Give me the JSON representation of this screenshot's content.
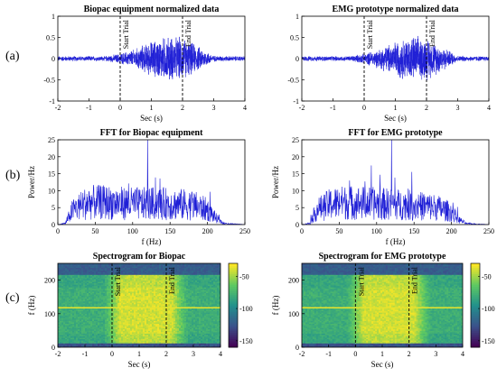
{
  "row_labels": [
    "(a)",
    "(b)",
    "(c)"
  ],
  "colors": {
    "signal": "#1f1fd6",
    "axis": "#000000"
  },
  "chart_data": [
    {
      "id": "biopac-time",
      "type": "line",
      "title": "Biopac equipment normalized data",
      "xlabel": "Sec (s)",
      "ylabel": "",
      "xlim": [
        -2,
        4
      ],
      "ylim": [
        -1,
        1
      ],
      "xticks": [
        -2,
        -1,
        0,
        1,
        2,
        3,
        4
      ],
      "yticks": [
        -1,
        -0.5,
        0,
        0.5,
        1
      ],
      "xtick_labels": [
        "-2",
        "-1",
        "0",
        "1",
        "2",
        "3",
        "4"
      ],
      "ytick_labels": [
        "-1",
        "-0.5",
        "0",
        "0.5",
        "1"
      ],
      "annotations": [
        {
          "x": 0,
          "label": "Start Trial"
        },
        {
          "x": 2,
          "label": "End Trial"
        }
      ],
      "envelope": {
        "x": [
          -2,
          -0.5,
          0,
          0.5,
          1.0,
          1.5,
          2.0,
          2.5,
          3.0,
          3.5,
          4
        ],
        "amp": [
          0.05,
          0.05,
          0.1,
          0.2,
          0.35,
          0.45,
          0.42,
          0.25,
          0.06,
          0.05,
          0.05
        ]
      }
    },
    {
      "id": "emg-time",
      "type": "line",
      "title": "EMG prototype normalized data",
      "xlabel": "Sec (s)",
      "ylabel": "",
      "xlim": [
        -2,
        4
      ],
      "ylim": [
        -1,
        1
      ],
      "xticks": [
        -2,
        -1,
        0,
        1,
        2,
        3,
        4
      ],
      "yticks": [
        -1,
        -0.5,
        0,
        0.5,
        1
      ],
      "xtick_labels": [
        "-2",
        "-1",
        "0",
        "1",
        "2",
        "3",
        "4"
      ],
      "ytick_labels": [
        "-1",
        "-0.5",
        "0",
        "0.5",
        "1"
      ],
      "annotations": [
        {
          "x": 0,
          "label": "Start Trial"
        },
        {
          "x": 2,
          "label": "End Trial"
        }
      ],
      "envelope": {
        "x": [
          -2,
          -0.5,
          0,
          0.5,
          1.0,
          1.5,
          2.0,
          2.5,
          3.0,
          3.5,
          4
        ],
        "amp": [
          0.05,
          0.05,
          0.1,
          0.2,
          0.35,
          0.45,
          0.42,
          0.25,
          0.06,
          0.05,
          0.05
        ]
      }
    },
    {
      "id": "biopac-fft",
      "type": "line",
      "title": "FFT for Biopac equipment",
      "xlabel": "f (Hz)",
      "ylabel": "Power/Hz",
      "xlim": [
        0,
        250
      ],
      "ylim": [
        0,
        25
      ],
      "xticks": [
        0,
        50,
        100,
        150,
        200,
        250
      ],
      "yticks": [
        0,
        5,
        10,
        15,
        20,
        25
      ],
      "xtick_labels": [
        "0",
        "50",
        "100",
        "150",
        "200",
        "250"
      ],
      "ytick_labels": [
        "0",
        "5",
        "10",
        "15",
        "20",
        "25"
      ],
      "spike": {
        "x": 120,
        "y": 25
      },
      "envelope": {
        "x": [
          0,
          10,
          20,
          40,
          60,
          100,
          140,
          180,
          200,
          210,
          220,
          250
        ],
        "amp": [
          0,
          0.5,
          6,
          9,
          9,
          8.5,
          8.5,
          8,
          6,
          3,
          0.5,
          0
        ]
      }
    },
    {
      "id": "emg-fft",
      "type": "line",
      "title": "FFT for EMG prototype",
      "xlabel": "f (Hz)",
      "ylabel": "Power/Hz",
      "xlim": [
        0,
        250
      ],
      "ylim": [
        0,
        25
      ],
      "xticks": [
        0,
        50,
        100,
        150,
        200,
        250
      ],
      "yticks": [
        0,
        5,
        10,
        15,
        20,
        25
      ],
      "xtick_labels": [
        "0",
        "50",
        "100",
        "150",
        "200",
        "250"
      ],
      "ytick_labels": [
        "0",
        "5",
        "10",
        "15",
        "20",
        "25"
      ],
      "spike": {
        "x": 120,
        "y": 25
      },
      "envelope": {
        "x": [
          0,
          10,
          20,
          40,
          60,
          100,
          140,
          180,
          200,
          210,
          220,
          250
        ],
        "amp": [
          0,
          0.5,
          6,
          8.5,
          9,
          8.5,
          8,
          7,
          5,
          2,
          0.4,
          0
        ]
      }
    },
    {
      "id": "biopac-spec",
      "type": "heatmap",
      "title": "Spectrogram for Biopac",
      "xlabel": "Sec (s)",
      "ylabel": "f (Hz)",
      "xlim": [
        -2,
        4
      ],
      "ylim": [
        0,
        250
      ],
      "xticks": [
        -2,
        -1,
        0,
        1,
        2,
        3,
        4
      ],
      "yticks": [
        0,
        100,
        200
      ],
      "xtick_labels": [
        "-2",
        "-1",
        "0",
        "1",
        "2",
        "3",
        "4"
      ],
      "ytick_labels": [
        "0",
        "100",
        "200"
      ],
      "annotations": [
        {
          "x": 0,
          "label": "Start Trial"
        },
        {
          "x": 2,
          "label": "End Trial"
        }
      ],
      "line_freq": 120,
      "colorbar": {
        "range": [
          -160,
          -30
        ],
        "ticks": [
          -50,
          -100,
          -150
        ],
        "tick_labels": [
          "-50",
          "-100",
          "-150"
        ]
      }
    },
    {
      "id": "emg-spec",
      "type": "heatmap",
      "title": "Spectrogram for EMG prototype",
      "xlabel": "Sec (s)",
      "ylabel": "f (Hz)",
      "xlim": [
        -2,
        4
      ],
      "ylim": [
        0,
        250
      ],
      "xticks": [
        -2,
        -1,
        0,
        1,
        2,
        3,
        4
      ],
      "yticks": [
        0,
        100,
        200
      ],
      "xtick_labels": [
        "-2",
        "-1",
        "0",
        "1",
        "2",
        "3",
        "4"
      ],
      "ytick_labels": [
        "0",
        "100",
        "200"
      ],
      "annotations": [
        {
          "x": 0,
          "label": "Start Trial"
        },
        {
          "x": 2,
          "label": "End Trial"
        }
      ],
      "line_freq": 120,
      "colorbar": {
        "range": [
          -160,
          -30
        ],
        "ticks": [
          -50,
          -100,
          -150
        ],
        "tick_labels": [
          "-50",
          "-100",
          "-150"
        ]
      }
    }
  ]
}
